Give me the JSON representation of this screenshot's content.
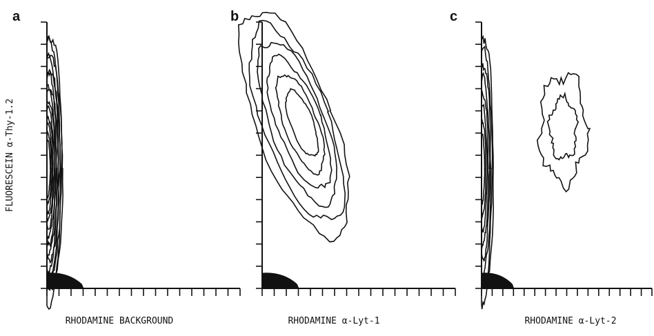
{
  "chart_data": [
    {
      "type": "contour",
      "panel_label": "a",
      "xlabel": "RHODAMINE BACKGROUND",
      "ylabel": "FLUORESCEIN α-Thy-1.2",
      "x_ticks": 16,
      "y_ticks": 12,
      "contour_levels": 14,
      "populations": [
        {
          "x_center": 0.07,
          "y_center": 0.45,
          "x_spread": 0.07,
          "y_spread": 0.5,
          "note": "single population near baseline rhodamine"
        }
      ]
    },
    {
      "type": "contour",
      "panel_label": "b",
      "xlabel": "RHODAMINE α-Lyt-1",
      "x_ticks": 16,
      "y_ticks": 12,
      "contour_levels": 6,
      "populations": [
        {
          "x_center": 0.17,
          "y_center": 0.62,
          "x_spread": 0.2,
          "y_spread": 0.45,
          "note": "single tilted population"
        }
      ]
    },
    {
      "type": "contour",
      "panel_label": "c",
      "xlabel": "RHODAMINE α-Lyt-2",
      "x_ticks": 16,
      "y_ticks": 12,
      "contour_levels": 8,
      "populations": [
        {
          "x_center": 0.06,
          "y_center": 0.45,
          "x_spread": 0.06,
          "y_spread": 0.5,
          "note": "Lyt-2 negative"
        },
        {
          "x_center": 0.48,
          "y_center": 0.6,
          "x_spread": 0.14,
          "y_spread": 0.2,
          "note": "Lyt-2 positive"
        }
      ]
    }
  ],
  "colors": {
    "ink": "#111111",
    "background": "#ffffff"
  }
}
